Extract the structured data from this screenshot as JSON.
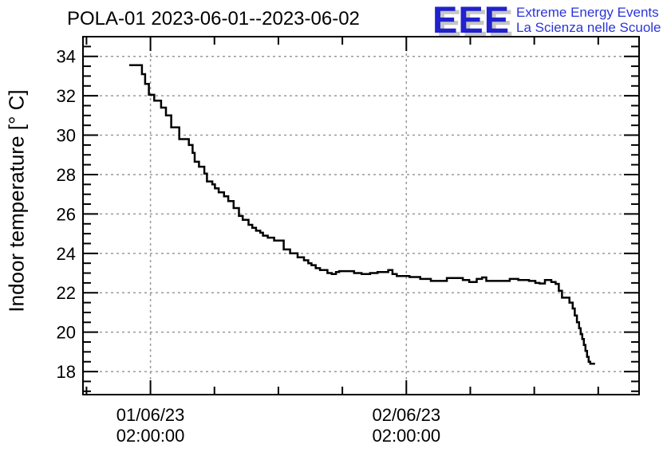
{
  "header": {
    "title": "POLA-01 2023-06-01--2023-06-02",
    "logo": {
      "text": "EEE",
      "tagline1": "Extreme Energy Events",
      "tagline2": "La Scienza nelle Scuole",
      "text_color": "#2121cd",
      "tagline_color": "#2c35d8",
      "shadow_color": "#c6c6c6"
    }
  },
  "chart_data": {
    "type": "line",
    "style": "step-after",
    "title": "POLA-01 2023-06-01--2023-06-02",
    "xlabel": "",
    "ylabel": "Indoor temperature [° C]",
    "line_color": "#000000",
    "frame_color": "#000000",
    "grid": true,
    "grid_color": "#999999",
    "grid_style": "dashed",
    "legend": "none",
    "ylim": [
      16.83,
      35.0
    ],
    "xlim_hours": [
      -4.33,
      47.83
    ],
    "x_time_origin": "2023-06-01 00:00:00",
    "ytick_labels": [
      "18",
      "20",
      "22",
      "24",
      "26",
      "28",
      "30",
      "32",
      "34"
    ],
    "y_minor_step": 0.5,
    "x_major_ticks": [
      {
        "hour": 2,
        "label_line1": "01/06/23",
        "label_line2": "02:00:00"
      },
      {
        "hour": 26,
        "label_line1": "02/06/23",
        "label_line2": "02:00:00"
      }
    ],
    "x_minor_step_hours": 6,
    "x_minor_start_hour": -4,
    "series": [
      {
        "name": "indoor_temperature",
        "units": "°C",
        "points": [
          [
            0.0,
            33.55
          ],
          [
            1.2,
            33.1
          ],
          [
            1.5,
            32.6
          ],
          [
            1.85,
            32.05
          ],
          [
            2.35,
            31.75
          ],
          [
            3.0,
            31.4
          ],
          [
            3.45,
            31.0
          ],
          [
            3.95,
            30.4
          ],
          [
            4.7,
            29.8
          ],
          [
            5.6,
            29.5
          ],
          [
            5.95,
            29.1
          ],
          [
            6.15,
            28.65
          ],
          [
            6.55,
            28.4
          ],
          [
            7.05,
            28.05
          ],
          [
            7.3,
            27.65
          ],
          [
            7.8,
            27.5
          ],
          [
            8.05,
            27.3
          ],
          [
            8.4,
            27.1
          ],
          [
            8.9,
            26.9
          ],
          [
            9.3,
            26.65
          ],
          [
            9.8,
            26.3
          ],
          [
            10.3,
            25.9
          ],
          [
            10.65,
            25.7
          ],
          [
            11.2,
            25.45
          ],
          [
            11.55,
            25.3
          ],
          [
            11.9,
            25.15
          ],
          [
            12.3,
            25.05
          ],
          [
            12.55,
            24.9
          ],
          [
            13.0,
            24.8
          ],
          [
            13.6,
            24.65
          ],
          [
            14.5,
            24.2
          ],
          [
            15.1,
            24.0
          ],
          [
            15.8,
            23.8
          ],
          [
            16.4,
            23.65
          ],
          [
            16.8,
            23.5
          ],
          [
            17.1,
            23.4
          ],
          [
            17.5,
            23.25
          ],
          [
            17.9,
            23.15
          ],
          [
            18.6,
            23.0
          ],
          [
            19.0,
            22.95
          ],
          [
            19.4,
            23.05
          ],
          [
            19.7,
            23.1
          ],
          [
            21.1,
            23.0
          ],
          [
            21.8,
            22.95
          ],
          [
            22.6,
            23.0
          ],
          [
            23.3,
            23.05
          ],
          [
            24.3,
            23.15
          ],
          [
            24.7,
            22.95
          ],
          [
            25.1,
            22.85
          ],
          [
            26.3,
            22.8
          ],
          [
            27.3,
            22.7
          ],
          [
            28.3,
            22.6
          ],
          [
            29.8,
            22.75
          ],
          [
            31.3,
            22.65
          ],
          [
            31.9,
            22.55
          ],
          [
            32.6,
            22.7
          ],
          [
            33.1,
            22.78
          ],
          [
            33.5,
            22.6
          ],
          [
            34.8,
            22.6
          ],
          [
            35.7,
            22.7
          ],
          [
            36.5,
            22.65
          ],
          [
            37.5,
            22.6
          ],
          [
            38.1,
            22.5
          ],
          [
            38.5,
            22.47
          ],
          [
            39.0,
            22.65
          ],
          [
            39.6,
            22.55
          ],
          [
            40.0,
            22.45
          ],
          [
            40.3,
            22.1
          ],
          [
            40.6,
            21.75
          ],
          [
            41.3,
            21.5
          ],
          [
            41.6,
            21.2
          ],
          [
            41.8,
            20.85
          ],
          [
            42.0,
            20.5
          ],
          [
            42.2,
            20.2
          ],
          [
            42.35,
            19.9
          ],
          [
            42.5,
            19.65
          ],
          [
            42.65,
            19.35
          ],
          [
            42.8,
            19.05
          ],
          [
            42.95,
            18.75
          ],
          [
            43.1,
            18.5
          ],
          [
            43.25,
            18.4
          ],
          [
            43.7,
            18.4
          ]
        ]
      }
    ]
  }
}
